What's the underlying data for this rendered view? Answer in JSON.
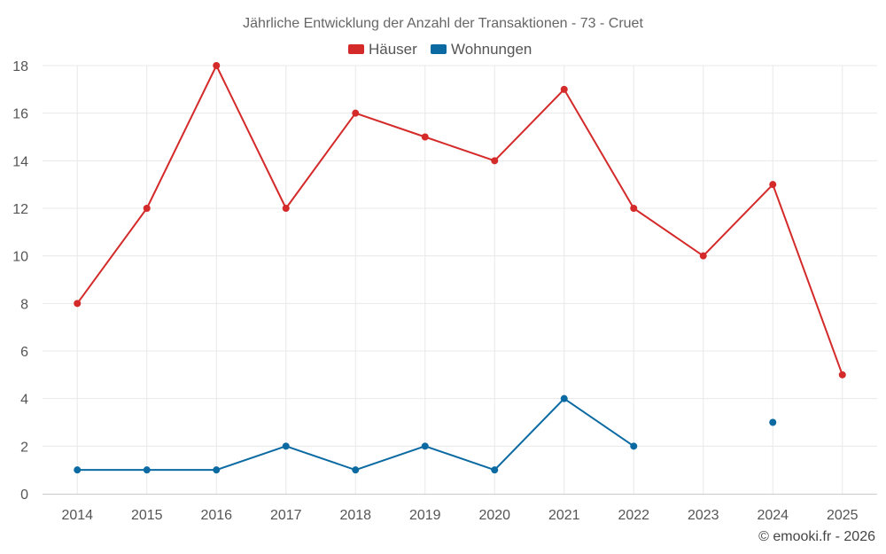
{
  "chart_data": {
    "type": "line",
    "title": "Jährliche Entwicklung der Anzahl der Transaktionen - 73 - Cruet",
    "categories": [
      "2014",
      "2015",
      "2016",
      "2017",
      "2018",
      "2019",
      "2020",
      "2021",
      "2022",
      "2023",
      "2024",
      "2025"
    ],
    "series": [
      {
        "name": "Häuser",
        "color": "#d42a2a",
        "values": [
          8,
          12,
          18,
          12,
          16,
          15,
          14,
          17,
          12,
          10,
          13,
          5
        ]
      },
      {
        "name": "Wohnungen",
        "color": "#0b6aa2",
        "values": [
          1,
          1,
          1,
          2,
          1,
          2,
          1,
          4,
          2,
          null,
          3,
          null
        ]
      }
    ],
    "ylim": [
      0,
      18
    ],
    "yticks": [
      "0",
      "2",
      "4",
      "6",
      "8",
      "10",
      "12",
      "14",
      "16",
      "18"
    ],
    "xlabel": "",
    "ylabel": "",
    "grid": true,
    "legend": "top-center"
  },
  "credit": "© emooki.fr - 2026"
}
